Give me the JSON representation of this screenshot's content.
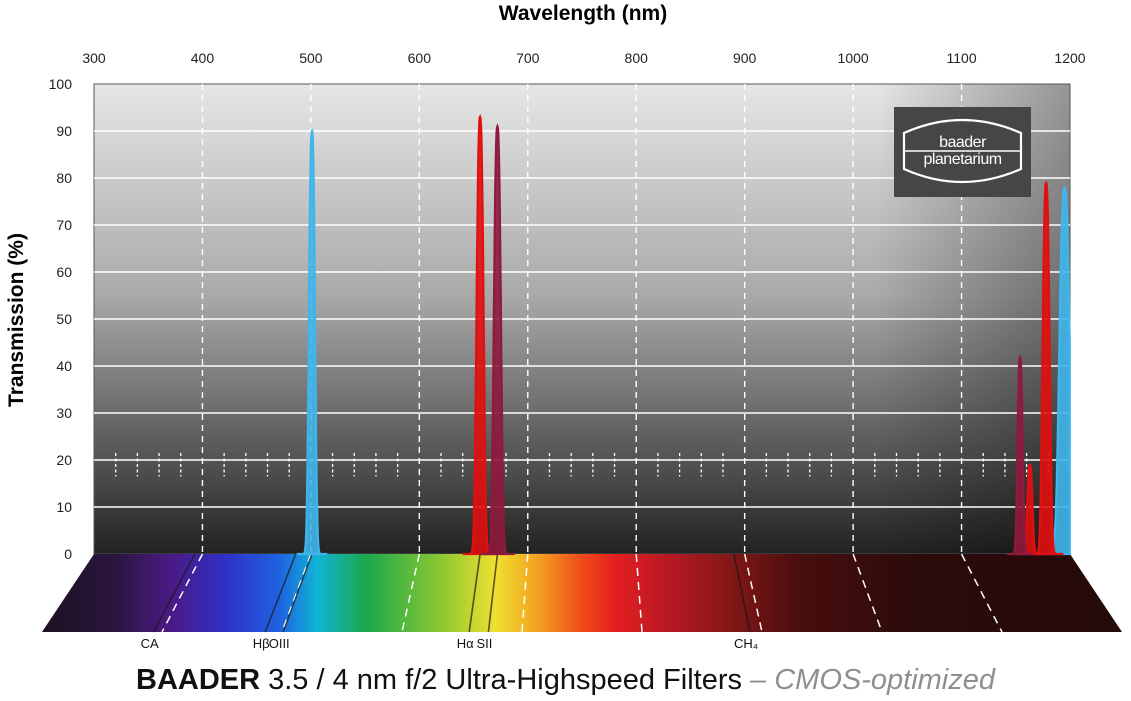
{
  "logo": {
    "line1": "baader",
    "line2": "planetarium"
  },
  "footer": {
    "brand": "BAADER",
    "main": " 3.5 / 4 nm f/2 Ultra-Highspeed Filters",
    "suffix": " – CMOS-optimized"
  },
  "chart_data": {
    "type": "line",
    "xlabel": "Wavelength (nm)",
    "ylabel": "Transmission (%)",
    "xlim": [
      300,
      1200
    ],
    "ylim": [
      0,
      100
    ],
    "x_ticks": [
      300,
      400,
      500,
      600,
      700,
      800,
      900,
      1000,
      1100,
      1200
    ],
    "y_ticks": [
      0,
      10,
      20,
      30,
      40,
      50,
      60,
      70,
      80,
      90,
      100
    ],
    "grid": true,
    "spectral_lines": [
      {
        "label": "CA",
        "x": 393
      },
      {
        "label": "Hβ",
        "x": 486
      },
      {
        "label": "OIII",
        "x": 501
      },
      {
        "label": "Hα",
        "x": 656
      },
      {
        "label": "SII",
        "x": 672
      },
      {
        "label": "CH₄",
        "x": 890
      }
    ],
    "series": [
      {
        "color": "#3fb5ea",
        "peaks": [
          {
            "center": 501,
            "width": 3.5,
            "peak": 90
          },
          {
            "center": 1195,
            "width": 6,
            "peak": 78
          }
        ]
      },
      {
        "color": "#e01010",
        "peaks": [
          {
            "center": 656,
            "width": 4,
            "peak": 93
          },
          {
            "center": 1178,
            "width": 4,
            "peak": 79
          },
          {
            "center": 1163,
            "width": 3,
            "peak": 19
          }
        ]
      },
      {
        "color": "#8e1a3c",
        "peaks": [
          {
            "center": 672,
            "width": 4,
            "peak": 91
          },
          {
            "center": 1154,
            "width": 3,
            "peak": 42
          }
        ]
      }
    ]
  }
}
